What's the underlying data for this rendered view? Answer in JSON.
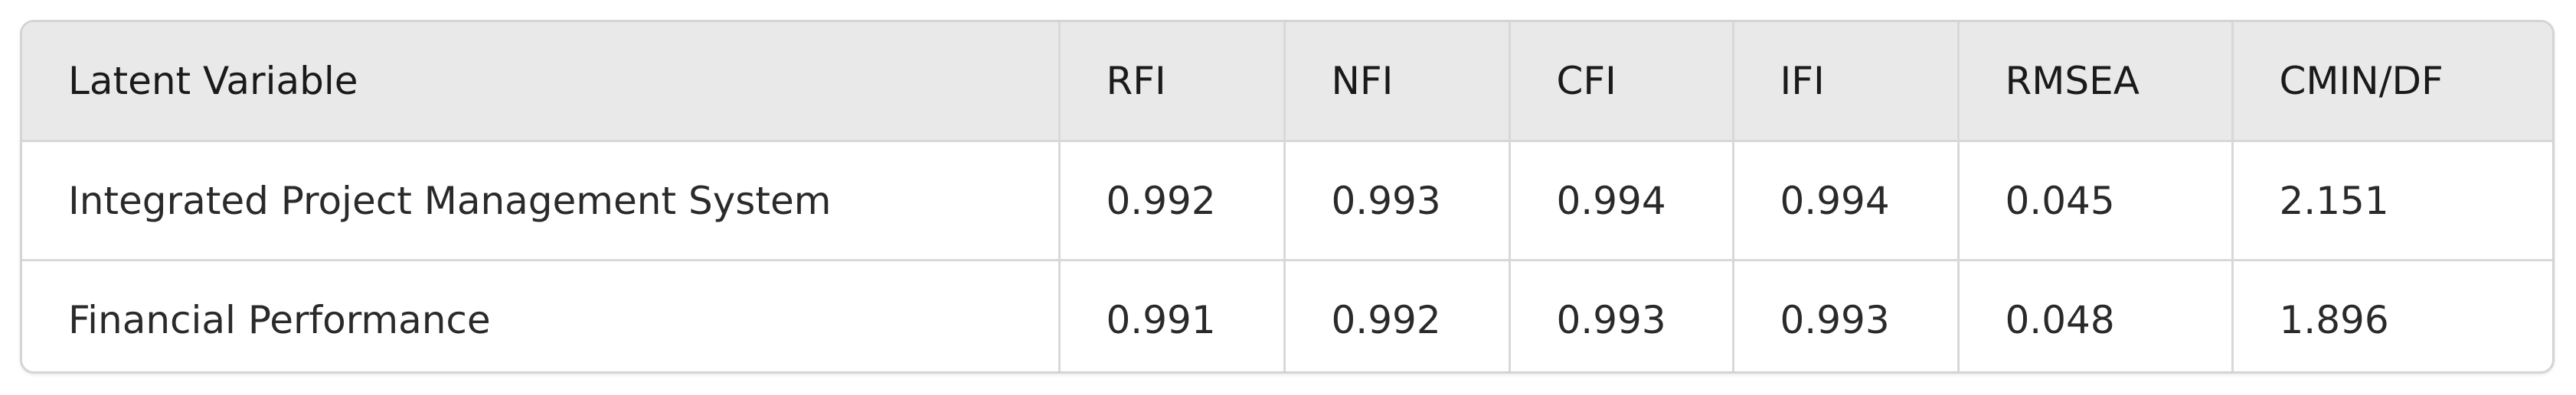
{
  "table": {
    "headers": [
      "Latent Variable",
      "RFI",
      "NFI",
      "CFI",
      "IFI",
      "RMSEA",
      "CMIN/DF"
    ],
    "rows": [
      [
        "Integrated Project Management System",
        "0.992",
        "0.993",
        "0.994",
        "0.994",
        "0.045",
        "2.151"
      ],
      [
        "Financial Performance",
        "0.991",
        "0.992",
        "0.993",
        "0.993",
        "0.048",
        "1.896"
      ]
    ]
  }
}
